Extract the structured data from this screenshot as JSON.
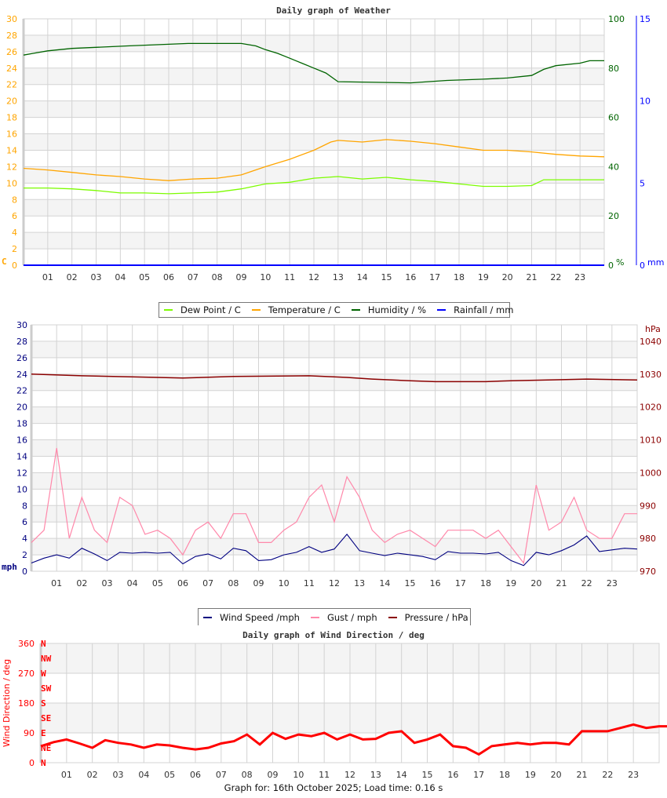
{
  "colors": {
    "dew_point": "#7cfc00",
    "temperature": "#ffa500",
    "humidity": "#006400",
    "rainfall": "#0000ff",
    "wind_speed": "#000080",
    "gust": "#ff88aa",
    "pressure": "#8b0000",
    "wind_direction": "#ff0000",
    "grid": "#d3d3d3",
    "band": "#f4f4f4"
  },
  "chart_data": [
    {
      "type": "line",
      "title": "Daily graph of Weather",
      "x_unit": "hour",
      "xlim": [
        0,
        24
      ],
      "x_tick_labels": [
        "01",
        "02",
        "03",
        "04",
        "05",
        "06",
        "07",
        "08",
        "09",
        "10",
        "11",
        "12",
        "13",
        "14",
        "15",
        "16",
        "17",
        "18",
        "19",
        "20",
        "21",
        "22",
        "23"
      ],
      "y_left": {
        "label": "C",
        "ylim": [
          0,
          30
        ],
        "ticks": [
          "0",
          "2",
          "4",
          "6",
          "8",
          "10",
          "12",
          "14",
          "16",
          "18",
          "20",
          "22",
          "24",
          "26",
          "28",
          "30"
        ]
      },
      "y_right": {
        "label": "%",
        "ylim": [
          0,
          100
        ],
        "ticks": [
          "0",
          "20",
          "40",
          "60",
          "80",
          "100"
        ]
      },
      "y_right2": {
        "label": "mm",
        "ylim": [
          0,
          15
        ],
        "ticks": [
          "0",
          "5",
          "10",
          "15"
        ]
      },
      "grid": true,
      "legend_position": "bottom",
      "legend": [
        "Dew Point / C",
        "Temperature / C",
        "Humidity / %",
        "Rainfall / mm"
      ],
      "series": [
        {
          "name": "Dew Point / C",
          "axis": "left",
          "x": [
            0,
            1,
            2,
            3,
            4,
            5,
            6,
            7,
            8,
            9,
            10,
            11,
            12,
            13,
            14,
            15,
            16,
            17,
            18,
            19,
            20,
            21,
            21.5,
            22,
            24
          ],
          "values": [
            9.4,
            9.4,
            9.3,
            9.1,
            8.8,
            8.8,
            8.7,
            8.8,
            8.9,
            9.3,
            9.9,
            10.1,
            10.6,
            10.8,
            10.5,
            10.7,
            10.4,
            10.2,
            9.9,
            9.6,
            9.6,
            9.7,
            10.4,
            10.4,
            10.4
          ]
        },
        {
          "name": "Temperature / C",
          "axis": "left",
          "x": [
            0,
            1,
            2,
            3,
            4,
            5,
            6,
            7,
            8,
            9,
            10,
            11,
            12,
            12.7,
            13,
            14,
            15,
            16,
            17,
            18,
            19,
            20,
            21,
            22,
            23,
            24
          ],
          "values": [
            11.8,
            11.6,
            11.3,
            11.0,
            10.8,
            10.5,
            10.3,
            10.5,
            10.6,
            11.0,
            12.0,
            12.9,
            14.0,
            15.0,
            15.2,
            15.0,
            15.3,
            15.1,
            14.8,
            14.4,
            14.0,
            14.0,
            13.8,
            13.5,
            13.3,
            13.2
          ]
        },
        {
          "name": "Humidity / %",
          "axis": "right",
          "x": [
            0,
            0.4,
            1,
            2,
            4.3,
            6.8,
            9,
            9.6,
            10,
            10.5,
            11,
            11.5,
            12,
            12.5,
            13,
            16,
            17.5,
            19,
            20,
            21,
            21.5,
            22,
            23,
            23.4,
            24
          ],
          "values": [
            85.3,
            86,
            87,
            88,
            89,
            90,
            90,
            89,
            87.5,
            86,
            84,
            82,
            80,
            78,
            74.5,
            74,
            75,
            75.5,
            76,
            77,
            79.5,
            81,
            82,
            83,
            83
          ]
        },
        {
          "name": "Rainfall / mm",
          "axis": "right2",
          "x": [
            0,
            24
          ],
          "values": [
            0,
            0
          ]
        }
      ]
    },
    {
      "type": "line",
      "title": "",
      "x_unit": "hour",
      "xlim": [
        0,
        24
      ],
      "x_tick_labels": [
        "01",
        "02",
        "03",
        "04",
        "05",
        "06",
        "07",
        "08",
        "09",
        "10",
        "11",
        "12",
        "13",
        "14",
        "15",
        "16",
        "17",
        "18",
        "19",
        "20",
        "21",
        "22",
        "23"
      ],
      "y_left": {
        "label": "mph",
        "ylim": [
          0,
          30
        ],
        "ticks": [
          "0",
          "2",
          "4",
          "6",
          "8",
          "10",
          "12",
          "14",
          "16",
          "18",
          "20",
          "22",
          "24",
          "26",
          "28",
          "30"
        ]
      },
      "y_right": {
        "label": "hPa",
        "ylim": [
          970,
          1045
        ],
        "ticks": [
          "970",
          "980",
          "990",
          "1000",
          "1010",
          "1020",
          "1030",
          "1040"
        ]
      },
      "grid": true,
      "legend_position": "bottom",
      "legend": [
        "Wind Speed /mph",
        "Gust / mph",
        "Pressure / hPa"
      ],
      "series": [
        {
          "name": "Wind Speed /mph",
          "axis": "left",
          "x_step": 0.5,
          "values": [
            1.0,
            1.6,
            2.0,
            1.6,
            2.8,
            2.1,
            1.3,
            2.3,
            2.2,
            2.3,
            2.2,
            2.3,
            0.9,
            1.8,
            2.1,
            1.5,
            2.8,
            2.5,
            1.3,
            1.4,
            2.0,
            2.3,
            3.0,
            2.3,
            2.7,
            4.5,
            2.5,
            2.2,
            1.9,
            2.2,
            2.0,
            1.8,
            1.4,
            2.4,
            2.2,
            2.2,
            2.1,
            2.3,
            1.3,
            0.7,
            2.3,
            2.0,
            2.5,
            3.2,
            4.3,
            2.4,
            2.6,
            2.8,
            2.7
          ]
        },
        {
          "name": "Gust / mph",
          "axis": "left",
          "x_step": 0.5,
          "values": [
            3.5,
            5,
            15,
            4,
            9,
            5,
            3.5,
            9,
            8,
            4.5,
            5,
            4,
            2,
            5,
            6,
            4,
            7,
            7,
            3.5,
            3.5,
            5,
            6,
            9,
            10.5,
            6,
            11.5,
            9,
            5,
            3.5,
            4.5,
            5,
            4,
            3,
            5,
            5,
            5,
            4,
            5,
            3,
            1,
            10.5,
            5,
            6,
            9,
            5,
            4,
            4,
            7,
            7
          ]
        },
        {
          "name": "Pressure / hPa",
          "axis": "right",
          "x": [
            0,
            2,
            5,
            6,
            8,
            11,
            12.5,
            13.5,
            15,
            16,
            18,
            19,
            21,
            22,
            24
          ],
          "values": [
            1030,
            1029.5,
            1029,
            1028.8,
            1029.3,
            1029.5,
            1029,
            1028.5,
            1028,
            1027.7,
            1027.7,
            1028,
            1028.3,
            1028.5,
            1028.2
          ]
        }
      ]
    },
    {
      "type": "scatter",
      "title": "Daily graph of Wind Direction / deg",
      "x_unit": "hour",
      "xlim": [
        0,
        24
      ],
      "x_tick_labels": [
        "01",
        "02",
        "03",
        "04",
        "05",
        "06",
        "07",
        "08",
        "09",
        "10",
        "11",
        "12",
        "13",
        "14",
        "15",
        "16",
        "17",
        "18",
        "19",
        "20",
        "21",
        "22",
        "23"
      ],
      "y_left": {
        "label": "Wind Direction / deg",
        "ylim": [
          0,
          360
        ],
        "ticks": [
          "0",
          "90",
          "180",
          "270",
          "360"
        ]
      },
      "compass_labels": [
        "N",
        "NE",
        "E",
        "SE",
        "S",
        "SW",
        "W",
        "NW",
        "N"
      ],
      "grid": true,
      "series": [
        {
          "name": "Wind Direction / deg",
          "x_step": 0.5,
          "values": [
            50,
            62,
            70,
            58,
            45,
            68,
            60,
            55,
            45,
            55,
            52,
            45,
            40,
            45,
            58,
            65,
            85,
            55,
            90,
            72,
            85,
            80,
            90,
            70,
            85,
            70,
            72,
            90,
            95,
            60,
            70,
            85,
            50,
            45,
            25,
            50,
            55,
            60,
            55,
            60,
            60,
            55,
            95,
            95,
            95,
            105,
            115,
            105,
            110,
            110,
            100
          ]
        }
      ]
    }
  ],
  "footer": "Graph for: 16th October 2025; Load time: 0.16 s"
}
